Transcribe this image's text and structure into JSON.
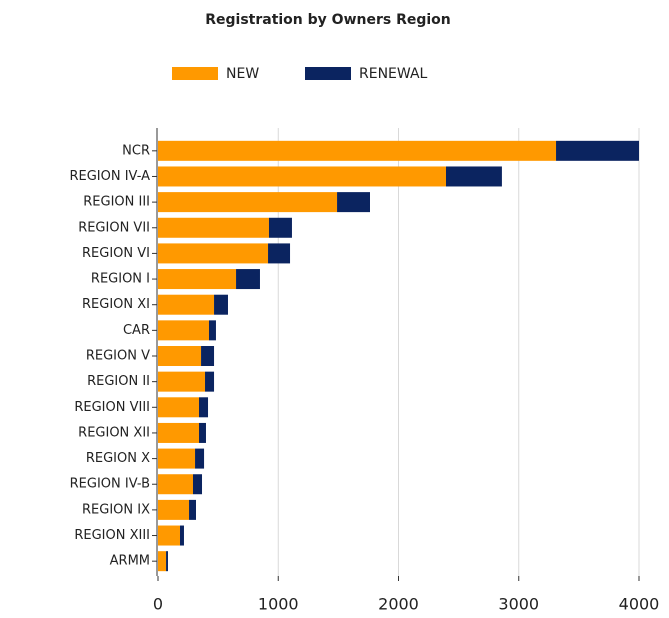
{
  "chart_data": {
    "type": "stacked-bar-horizontal",
    "title": "Registration by Owners Region",
    "categories": [
      "NCR",
      "REGION IV-A",
      "REGION III",
      "REGION VII",
      "REGION VI",
      "REGION I",
      "REGION XI",
      "CAR",
      "REGION V",
      "REGION II",
      "REGION VIII",
      "REGION XII",
      "REGION X",
      "REGION IV-B",
      "REGION IX",
      "REGION XIII",
      "ARMM"
    ],
    "series": [
      {
        "name": "NEW",
        "color": "#ff9900",
        "values": [
          3310,
          2395,
          1489,
          923,
          915,
          649,
          466,
          424,
          358,
          391,
          341,
          341,
          308,
          291,
          258,
          183,
          67
        ]
      },
      {
        "name": "RENEWAL",
        "color": "#0b2460",
        "values": [
          690,
          465,
          274,
          191,
          183,
          199,
          116,
          58,
          108,
          75,
          75,
          58,
          75,
          75,
          58,
          33,
          16
        ]
      }
    ],
    "xlim": [
      0,
      4000
    ],
    "xticks": [
      0,
      1000,
      2000,
      3000,
      4000
    ],
    "grid": true
  }
}
